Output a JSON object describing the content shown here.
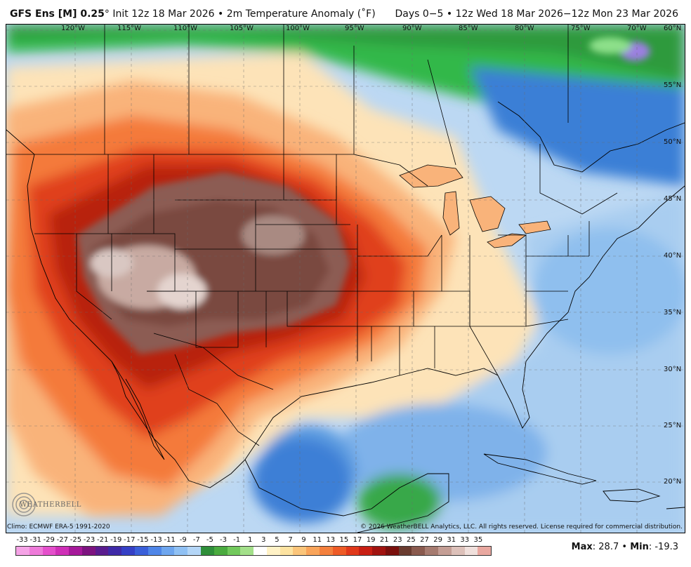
{
  "header": {
    "model": "GFS Ens [M] 0.25",
    "degree_symbol": "°",
    "init_text": "Init 12z 18 Mar 2026 • 2m Temperature Anomaly (˚F)",
    "valid_text": "Days 0−5 • 12z Wed 18 Mar 2026−12z Mon 23 Mar 2026"
  },
  "map": {
    "longitude_labels": [
      "120°W",
      "115°W",
      "110°W",
      "105°W",
      "100°W",
      "95°W",
      "90°W",
      "85°W",
      "80°W",
      "75°W",
      "70°W"
    ],
    "latitude_labels": [
      "60°N",
      "55°N",
      "50°N",
      "45°N",
      "40°N",
      "35°N",
      "30°N",
      "25°N",
      "20°N"
    ],
    "colors": {
      "extreme_warm": "#7a4a40",
      "warm_core": "#8c5c52",
      "light_core": "#d9c7c2",
      "deep_red": "#b8240e",
      "red": "#e0401a",
      "orange": "#f47a3a",
      "light_orange": "#f9b37a",
      "pale": "#fde3b8",
      "light_blue": "#a9cdf0",
      "blue": "#5c9be0",
      "deep_blue": "#2f6fd0",
      "green": "#33b84a",
      "light_green": "#8de08a",
      "purple": "#9b7fe0"
    }
  },
  "logo": {
    "text": "WEATHERBELL"
  },
  "footer": {
    "climo": "Climo: ECMWF ERA-5 1991-2020",
    "copyright": "© 2026 WeatherBELL Analytics, LLC. All rights reserved. License required for commercial distribution."
  },
  "colorbar": {
    "tick_labels": [
      "-33",
      "-31",
      "-29",
      "-27",
      "-25",
      "-23",
      "-21",
      "-19",
      "-17",
      "-15",
      "-13",
      "-11",
      "-9",
      "-7",
      "-5",
      "-3",
      "-1",
      "1",
      "3",
      "5",
      "7",
      "9",
      "11",
      "13",
      "15",
      "17",
      "19",
      "21",
      "23",
      "25",
      "27",
      "29",
      "31",
      "33",
      "35"
    ],
    "colors": [
      "#f5a3e6",
      "#ee7ad9",
      "#e44fcb",
      "#cf2fb7",
      "#a6199a",
      "#7d1380",
      "#5a1c8f",
      "#3f2aa8",
      "#3540c6",
      "#3a5fd9",
      "#4f86e8",
      "#6ea6ef",
      "#90c1f4",
      "#b4d6f7",
      "#2f8f3a",
      "#4aab3f",
      "#72c95c",
      "#a3e08a",
      "#ffffff",
      "#fff2c6",
      "#fde3a1",
      "#fbc57a",
      "#f9a45a",
      "#f4803d",
      "#ee5b26",
      "#e0381a",
      "#c81f13",
      "#a1130f",
      "#7a0f0c",
      "#6a3c30",
      "#8a5a4e",
      "#a67b70",
      "#c49e95",
      "#ddc1ba",
      "#f0e0dc",
      "#e9a8a0"
    ]
  },
  "stats": {
    "max_label": "Max",
    "max_value": "28.7",
    "separator": "•",
    "min_label": "Min",
    "min_value": "-19.3"
  }
}
